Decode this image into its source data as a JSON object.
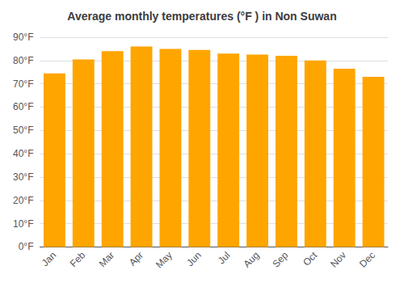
{
  "chart_data": {
    "type": "bar",
    "title": "Average monthly temperatures (°F ) in Non Suwan",
    "categories": [
      "Jan",
      "Feb",
      "Mar",
      "Apr",
      "May",
      "Jun",
      "Jul",
      "Aug",
      "Sep",
      "Oct",
      "Nov",
      "Dec"
    ],
    "values": [
      74.5,
      80.5,
      84.0,
      86.0,
      85.0,
      84.5,
      83.0,
      82.5,
      82.0,
      80.0,
      76.5,
      73.0
    ],
    "color": "#FFA500",
    "ylim": [
      0,
      90
    ],
    "yticks": [
      {
        "value": 0,
        "label": "0°F"
      },
      {
        "value": 10,
        "label": "10°F"
      },
      {
        "value": 20,
        "label": "20°F"
      },
      {
        "value": 30,
        "label": "30°F"
      },
      {
        "value": 40,
        "label": "40°F"
      },
      {
        "value": 50,
        "label": "50°F"
      },
      {
        "value": 60,
        "label": "60°F"
      },
      {
        "value": 70,
        "label": "70°F"
      },
      {
        "value": 80,
        "label": "80°F"
      },
      {
        "value": 90,
        "label": "90°F"
      }
    ],
    "grid": true
  }
}
